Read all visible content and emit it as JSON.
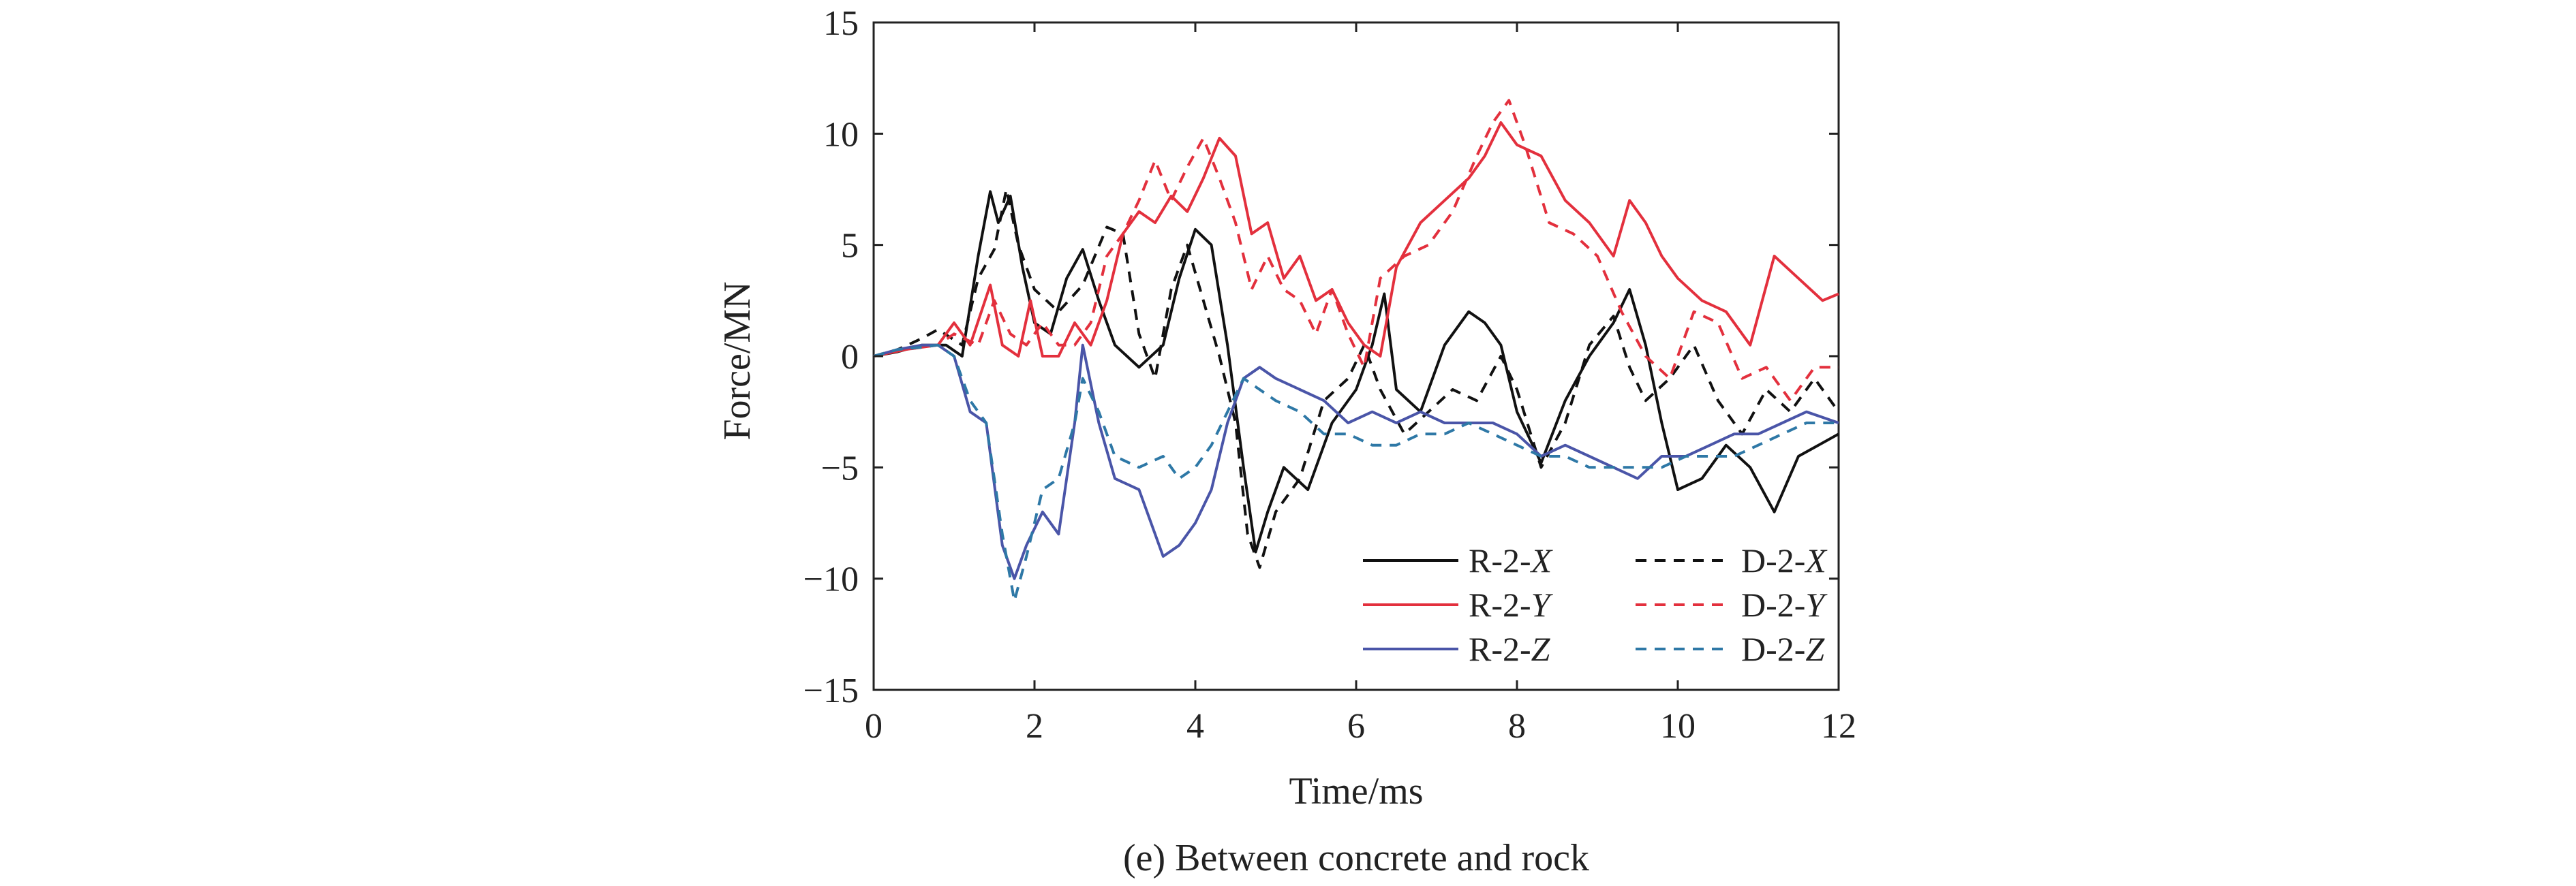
{
  "chart_data": {
    "type": "line",
    "title": "",
    "caption": "(e) Between concrete and rock",
    "xlabel": "Time/ms",
    "ylabel": "Force/MN",
    "xlim": [
      0,
      12
    ],
    "ylim": [
      -15,
      15
    ],
    "xticks": [
      0,
      2,
      4,
      6,
      8,
      10,
      12
    ],
    "yticks": [
      -15,
      -10,
      -5,
      0,
      5,
      10,
      15
    ],
    "ytick_labels": [
      "−15",
      "−10",
      "−5",
      "0",
      "5",
      "10",
      "15"
    ],
    "grid": false,
    "legend_position": "bottom-right",
    "series": [
      {
        "name": "R-2-X",
        "label_prefix": "R-2-",
        "label_axis": "X",
        "color": "#111111",
        "dash": "solid",
        "x": [
          0,
          0.3,
          0.6,
          0.9,
          1.1,
          1.3,
          1.45,
          1.55,
          1.7,
          1.85,
          2.0,
          2.2,
          2.4,
          2.6,
          2.8,
          3.0,
          3.3,
          3.6,
          3.8,
          4.0,
          4.2,
          4.4,
          4.6,
          4.75,
          4.9,
          5.1,
          5.4,
          5.7,
          6.0,
          6.2,
          6.35,
          6.5,
          6.8,
          7.1,
          7.4,
          7.6,
          7.8,
          8.0,
          8.3,
          8.6,
          8.9,
          9.2,
          9.4,
          9.6,
          9.8,
          10.0,
          10.3,
          10.6,
          10.9,
          11.2,
          11.5,
          12.0
        ],
        "y": [
          0,
          0.2,
          0.5,
          0.5,
          0,
          4.5,
          7.4,
          6.0,
          7.2,
          4.0,
          1.5,
          1.0,
          3.5,
          4.8,
          2.5,
          0.5,
          -0.5,
          0.5,
          3.5,
          5.7,
          5.0,
          0.5,
          -5.0,
          -8.8,
          -7.0,
          -5.0,
          -6.0,
          -3.0,
          -1.5,
          0.5,
          2.8,
          -1.5,
          -2.5,
          0.5,
          2.0,
          1.5,
          0.5,
          -2.5,
          -4.8,
          -2.0,
          0,
          1.5,
          3.0,
          0.5,
          -3.0,
          -6.0,
          -5.5,
          -4.0,
          -5.0,
          -7.0,
          -4.5,
          -3.5
        ]
      },
      {
        "name": "D-2-X",
        "label_prefix": "D-2-",
        "label_axis": "X",
        "color": "#111111",
        "dash": "dashed",
        "x": [
          0,
          0.3,
          0.6,
          0.8,
          1.1,
          1.3,
          1.5,
          1.65,
          1.8,
          2.0,
          2.3,
          2.6,
          2.9,
          3.1,
          3.3,
          3.5,
          3.7,
          3.9,
          4.1,
          4.3,
          4.5,
          4.65,
          4.8,
          5.0,
          5.3,
          5.6,
          5.9,
          6.1,
          6.3,
          6.6,
          6.9,
          7.2,
          7.5,
          7.8,
          8.0,
          8.3,
          8.6,
          8.9,
          9.2,
          9.4,
          9.6,
          9.9,
          10.2,
          10.5,
          10.8,
          11.1,
          11.4,
          11.7,
          12.0
        ],
        "y": [
          0,
          0.3,
          0.8,
          1.2,
          0.5,
          3.5,
          4.8,
          7.5,
          5.0,
          3.0,
          2.0,
          3.2,
          5.8,
          5.5,
          1.0,
          -1.0,
          3.0,
          5.0,
          2.5,
          0,
          -3.0,
          -8.0,
          -9.5,
          -7.0,
          -5.5,
          -2.0,
          -1.0,
          0.5,
          -1.5,
          -3.5,
          -2.5,
          -1.5,
          -2.0,
          0,
          -1.5,
          -5.0,
          -3.0,
          0.5,
          1.8,
          -0.5,
          -2.0,
          -1.0,
          0.5,
          -2.0,
          -3.5,
          -1.5,
          -2.5,
          -1.0,
          -2.5
        ]
      },
      {
        "name": "R-2-Y",
        "label_prefix": "R-2-",
        "label_axis": "Y",
        "color": "#e3303d",
        "dash": "solid",
        "x": [
          0,
          0.4,
          0.8,
          1.0,
          1.2,
          1.45,
          1.6,
          1.8,
          1.95,
          2.1,
          2.3,
          2.5,
          2.7,
          2.9,
          3.1,
          3.3,
          3.5,
          3.7,
          3.9,
          4.1,
          4.3,
          4.5,
          4.7,
          4.9,
          5.1,
          5.3,
          5.5,
          5.7,
          5.9,
          6.1,
          6.3,
          6.5,
          6.8,
          7.1,
          7.4,
          7.6,
          7.8,
          8.0,
          8.3,
          8.6,
          8.9,
          9.2,
          9.4,
          9.6,
          9.8,
          10.0,
          10.3,
          10.6,
          10.9,
          11.2,
          11.5,
          11.8,
          12.0
        ],
        "y": [
          0,
          0.3,
          0.5,
          1.5,
          0.5,
          3.2,
          0.5,
          0,
          2.5,
          0,
          0,
          1.5,
          0.5,
          2.5,
          5.5,
          6.5,
          6.0,
          7.2,
          6.5,
          8.0,
          9.8,
          9.0,
          5.5,
          6.0,
          3.5,
          4.5,
          2.5,
          3.0,
          1.5,
          0.5,
          0,
          4.0,
          6.0,
          7.0,
          8.0,
          9.0,
          10.5,
          9.5,
          9.0,
          7.0,
          6.0,
          4.5,
          7.0,
          6.0,
          4.5,
          3.5,
          2.5,
          2.0,
          0.5,
          4.5,
          3.5,
          2.5,
          2.8
        ]
      },
      {
        "name": "D-2-Y",
        "label_prefix": "D-2-",
        "label_axis": "Y",
        "color": "#e3303d",
        "dash": "dashed",
        "x": [
          0,
          0.4,
          0.8,
          1.0,
          1.3,
          1.5,
          1.7,
          1.9,
          2.1,
          2.3,
          2.5,
          2.7,
          2.9,
          3.1,
          3.3,
          3.5,
          3.7,
          3.9,
          4.1,
          4.3,
          4.5,
          4.7,
          4.9,
          5.1,
          5.3,
          5.5,
          5.7,
          5.9,
          6.1,
          6.3,
          6.6,
          6.9,
          7.2,
          7.5,
          7.7,
          7.9,
          8.1,
          8.4,
          8.7,
          9.0,
          9.3,
          9.6,
          9.9,
          10.2,
          10.5,
          10.8,
          11.1,
          11.4,
          11.7,
          12.0
        ],
        "y": [
          0,
          0.3,
          0.5,
          1.0,
          0.5,
          2.5,
          1.0,
          0.5,
          1.5,
          0.5,
          0.5,
          1.5,
          4.5,
          5.5,
          7.0,
          8.8,
          7.0,
          8.5,
          9.8,
          8.0,
          6.0,
          3.0,
          4.5,
          3.0,
          2.5,
          1.0,
          3.0,
          1.0,
          -0.5,
          3.5,
          4.5,
          5.0,
          6.5,
          9.0,
          10.5,
          11.5,
          9.5,
          6.0,
          5.5,
          4.5,
          2.0,
          0,
          -1.0,
          2.0,
          1.5,
          -1.0,
          -0.5,
          -2.0,
          -0.5,
          -0.5
        ]
      },
      {
        "name": "R-2-Z",
        "label_prefix": "R-2-",
        "label_axis": "Z",
        "color": "#4a55a8",
        "dash": "solid",
        "x": [
          0,
          0.3,
          0.6,
          0.8,
          1.0,
          1.2,
          1.4,
          1.6,
          1.75,
          1.9,
          2.1,
          2.3,
          2.5,
          2.6,
          2.8,
          3.0,
          3.3,
          3.6,
          3.8,
          4.0,
          4.2,
          4.4,
          4.6,
          4.8,
          5.0,
          5.3,
          5.6,
          5.9,
          6.2,
          6.5,
          6.8,
          7.1,
          7.4,
          7.7,
          8.0,
          8.3,
          8.6,
          8.9,
          9.2,
          9.5,
          9.8,
          10.1,
          10.4,
          10.7,
          11.0,
          11.3,
          11.6,
          12.0
        ],
        "y": [
          0,
          0.3,
          0.5,
          0.5,
          0,
          -2.5,
          -3.0,
          -8.5,
          -10.0,
          -8.5,
          -7.0,
          -8.0,
          -3.0,
          0.5,
          -3.0,
          -5.5,
          -6.0,
          -9.0,
          -8.5,
          -7.5,
          -6.0,
          -3.0,
          -1.0,
          -0.5,
          -1.0,
          -1.5,
          -2.0,
          -3.0,
          -2.5,
          -3.0,
          -2.5,
          -3.0,
          -3.0,
          -3.0,
          -3.5,
          -4.5,
          -4.0,
          -4.5,
          -5.0,
          -5.5,
          -4.5,
          -4.5,
          -4.0,
          -3.5,
          -3.5,
          -3.0,
          -2.5,
          -3.0
        ]
      },
      {
        "name": "D-2-Z",
        "label_prefix": "D-2-",
        "label_axis": "Z",
        "color": "#2e78a6",
        "dash": "dashed",
        "x": [
          0,
          0.3,
          0.6,
          0.8,
          1.0,
          1.2,
          1.4,
          1.6,
          1.75,
          1.9,
          2.1,
          2.3,
          2.5,
          2.6,
          2.8,
          3.0,
          3.3,
          3.6,
          3.8,
          4.0,
          4.2,
          4.4,
          4.6,
          4.8,
          5.0,
          5.3,
          5.6,
          5.9,
          6.2,
          6.5,
          6.8,
          7.1,
          7.4,
          7.7,
          8.0,
          8.3,
          8.6,
          8.9,
          9.2,
          9.5,
          9.8,
          10.1,
          10.4,
          10.7,
          11.0,
          11.3,
          11.6,
          12.0
        ],
        "y": [
          0,
          0.3,
          0.4,
          0.5,
          0,
          -2.0,
          -3.0,
          -8.0,
          -11.0,
          -9.0,
          -6.0,
          -5.5,
          -3.0,
          -1.0,
          -2.5,
          -4.5,
          -5.0,
          -4.5,
          -5.5,
          -5.0,
          -4.0,
          -2.5,
          -1.0,
          -1.5,
          -2.0,
          -2.5,
          -3.5,
          -3.5,
          -4.0,
          -4.0,
          -3.5,
          -3.5,
          -3.0,
          -3.5,
          -4.0,
          -4.5,
          -4.5,
          -5.0,
          -5.0,
          -5.0,
          -5.0,
          -4.5,
          -4.5,
          -4.5,
          -4.0,
          -3.5,
          -3.0,
          -3.0
        ]
      }
    ]
  }
}
